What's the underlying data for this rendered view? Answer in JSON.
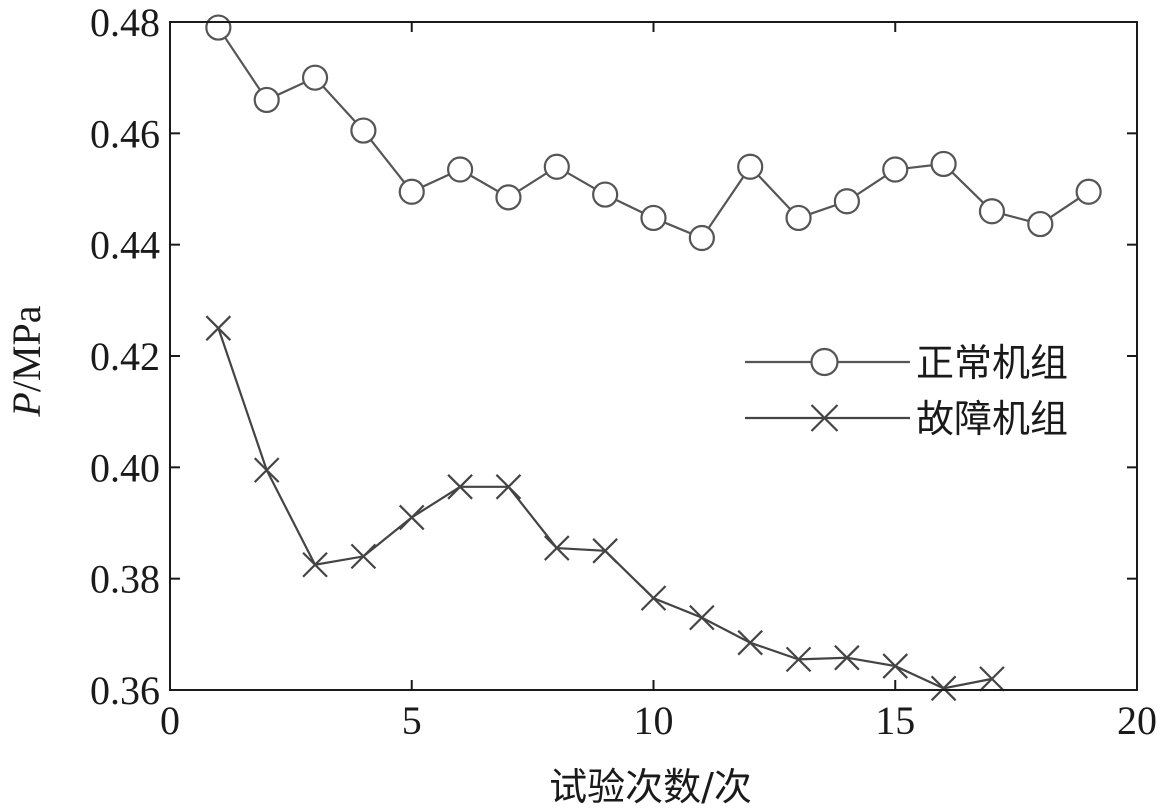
{
  "chart_data": {
    "type": "line",
    "title": "",
    "xlabel": "试验次数/次",
    "ylabel_italic": "P",
    "ylabel_rest": "/MPa",
    "xlim": [
      0,
      20
    ],
    "ylim": [
      0.36,
      0.48
    ],
    "xticks": [
      "0",
      "5",
      "10",
      "15",
      "20"
    ],
    "yticks": [
      "0.36",
      "0.38",
      "0.40",
      "0.42",
      "0.44",
      "0.46",
      "0.48"
    ],
    "grid": false,
    "legend_position": "right",
    "series": [
      {
        "name": "正常机组",
        "marker": "circle",
        "color": "#555555",
        "x": [
          1,
          2,
          3,
          4,
          5,
          6,
          7,
          8,
          9,
          10,
          11,
          12,
          13,
          14,
          15,
          16,
          17,
          18,
          19
        ],
        "values": [
          0.479,
          0.466,
          0.47,
          0.4605,
          0.4495,
          0.4535,
          0.4485,
          0.454,
          0.449,
          0.4448,
          0.4412,
          0.454,
          0.4448,
          0.4478,
          0.4535,
          0.4545,
          0.446,
          0.4437,
          0.4495
        ]
      },
      {
        "name": "故障机组",
        "marker": "x",
        "color": "#444444",
        "x": [
          1,
          2,
          3,
          4,
          5,
          6,
          7,
          8,
          9,
          10,
          11,
          12,
          13,
          14,
          15,
          16,
          17
        ],
        "values": [
          0.425,
          0.3995,
          0.3825,
          0.384,
          0.391,
          0.3965,
          0.3965,
          0.3855,
          0.385,
          0.3765,
          0.373,
          0.3685,
          0.3655,
          0.3658,
          0.3643,
          0.3603,
          0.362
        ]
      }
    ]
  }
}
